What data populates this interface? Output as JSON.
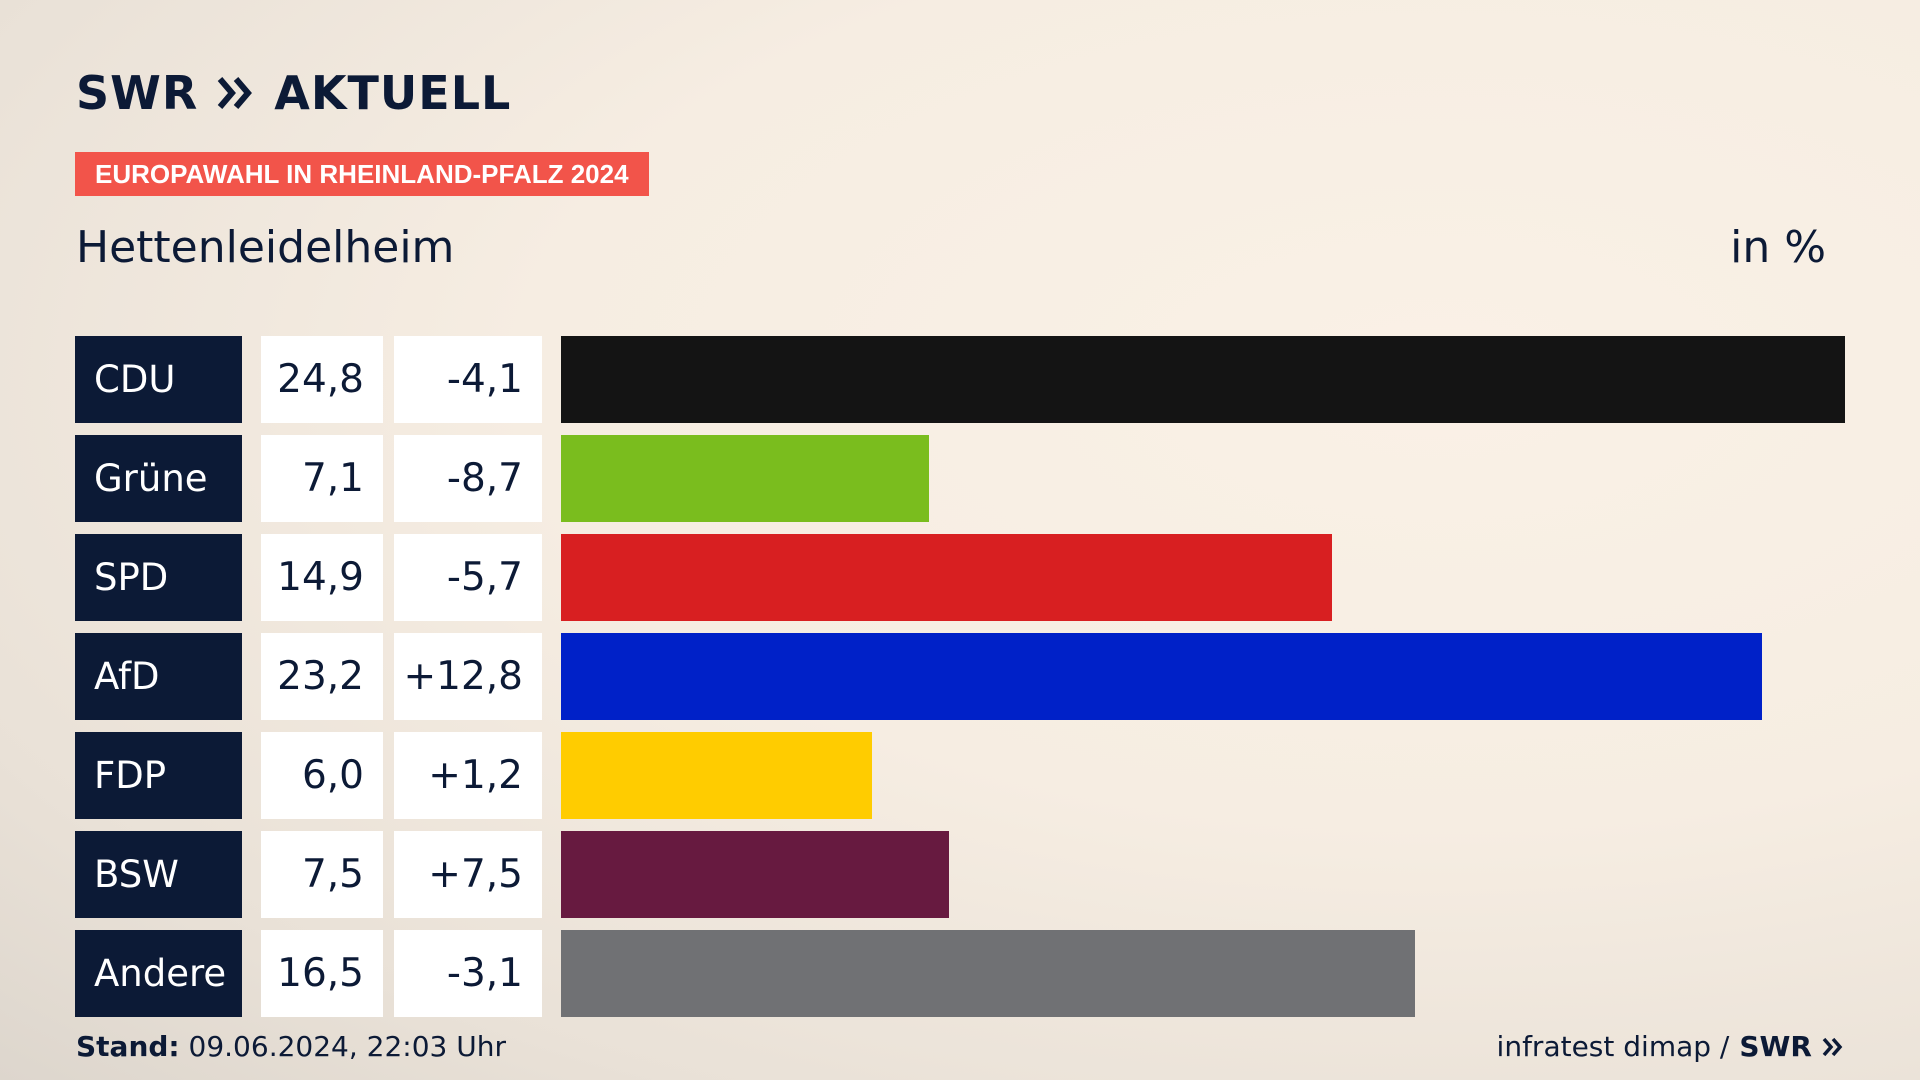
{
  "header": {
    "logo_swr": "SWR",
    "logo_aktuell": "AKTUELL",
    "badge": "EUROPAWAHL IN RHEINLAND-PFALZ 2024",
    "subtitle": "Hettenleidelheim",
    "unit": "in %"
  },
  "footer": {
    "stand_label": "Stand:",
    "stand_value": "09.06.2024, 22:03 Uhr",
    "source": "infratest dimap /",
    "source_logo": "SWR"
  },
  "colors": {
    "navy": "#0c1a36",
    "badge": "#f2544a"
  },
  "chart_data": {
    "type": "bar",
    "orientation": "horizontal",
    "categories": [
      "CDU",
      "Grüne",
      "SPD",
      "AfD",
      "FDP",
      "BSW",
      "Andere"
    ],
    "values": [
      24.8,
      7.1,
      14.9,
      23.2,
      6.0,
      7.5,
      16.5
    ],
    "value_labels": [
      "24,8",
      "7,1",
      "14,9",
      "23,2",
      "6,0",
      "7,5",
      "16,5"
    ],
    "diff_labels": [
      "-4,1",
      "-8,7",
      "-5,7",
      "+12,8",
      "+1,2",
      "+7,5",
      "-3,1"
    ],
    "diffs": [
      -4.1,
      -8.7,
      -5.7,
      12.8,
      1.2,
      7.5,
      -3.1
    ],
    "bar_colors": [
      "#141414",
      "#7abd1e",
      "#d81f21",
      "#0021c8",
      "#ffcc00",
      "#671a40",
      "#707174"
    ],
    "xlim": [
      0,
      24.8
    ],
    "grid": false,
    "legend": "none"
  }
}
